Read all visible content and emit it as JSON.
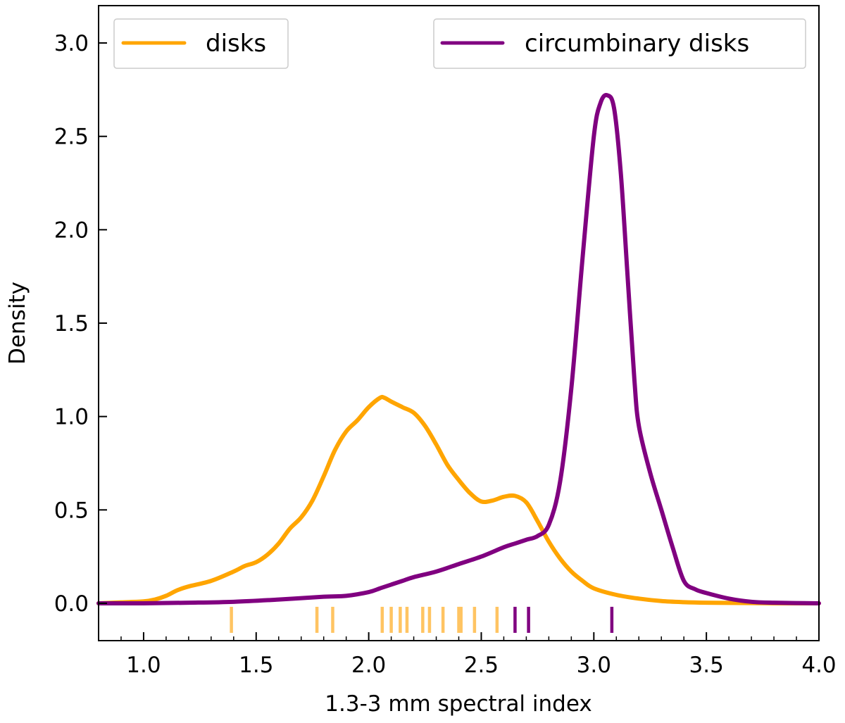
{
  "chart_data": {
    "type": "line",
    "title": "",
    "xlabel": "1.3-3 mm spectral index",
    "ylabel": "Density",
    "xlim": [
      0.8,
      4.0
    ],
    "ylim": [
      -0.2,
      3.2
    ],
    "xticks": [
      1.0,
      1.5,
      2.0,
      2.5,
      3.0,
      3.5,
      4.0
    ],
    "xtick_labels": [
      "1.0",
      "1.5",
      "2.0",
      "2.5",
      "3.0",
      "3.5",
      "4.0"
    ],
    "yticks": [
      0.0,
      0.5,
      1.0,
      1.5,
      2.0,
      2.5,
      3.0
    ],
    "ytick_labels": [
      "0.0",
      "0.5",
      "1.0",
      "1.5",
      "2.0",
      "2.5",
      "3.0"
    ],
    "grid": false,
    "series": [
      {
        "name": "disks",
        "color": "#FFA500",
        "x": [
          0.8,
          0.9,
          1.0,
          1.05,
          1.1,
          1.15,
          1.2,
          1.3,
          1.4,
          1.45,
          1.5,
          1.55,
          1.6,
          1.65,
          1.7,
          1.75,
          1.8,
          1.85,
          1.9,
          1.95,
          2.0,
          2.05,
          2.07,
          2.1,
          2.15,
          2.2,
          2.25,
          2.3,
          2.35,
          2.4,
          2.45,
          2.5,
          2.55,
          2.6,
          2.65,
          2.7,
          2.75,
          2.8,
          2.85,
          2.9,
          2.95,
          3.0,
          3.1,
          3.2,
          3.3,
          3.4,
          3.5,
          3.6,
          3.7,
          3.8,
          4.0
        ],
        "y": [
          0.0,
          0.005,
          0.01,
          0.02,
          0.04,
          0.07,
          0.09,
          0.12,
          0.17,
          0.2,
          0.22,
          0.26,
          0.32,
          0.4,
          0.46,
          0.55,
          0.68,
          0.82,
          0.92,
          0.98,
          1.05,
          1.1,
          1.1,
          1.08,
          1.05,
          1.02,
          0.95,
          0.85,
          0.74,
          0.66,
          0.59,
          0.545,
          0.55,
          0.57,
          0.575,
          0.54,
          0.44,
          0.33,
          0.24,
          0.17,
          0.12,
          0.08,
          0.045,
          0.025,
          0.012,
          0.006,
          0.003,
          0.002,
          0.001,
          0.0,
          0.0
        ]
      },
      {
        "name": "circumbinary disks",
        "color": "#800080",
        "x": [
          0.8,
          1.0,
          1.2,
          1.4,
          1.6,
          1.8,
          1.9,
          2.0,
          2.05,
          2.1,
          2.15,
          2.2,
          2.3,
          2.4,
          2.5,
          2.6,
          2.65,
          2.7,
          2.75,
          2.8,
          2.85,
          2.9,
          2.95,
          3.0,
          3.03,
          3.06,
          3.09,
          3.12,
          3.15,
          3.18,
          3.2,
          3.25,
          3.3,
          3.35,
          3.4,
          3.45,
          3.5,
          3.6,
          3.7,
          3.8,
          4.0
        ],
        "y": [
          0.0,
          0.0,
          0.003,
          0.008,
          0.02,
          0.035,
          0.04,
          0.06,
          0.08,
          0.1,
          0.12,
          0.14,
          0.17,
          0.21,
          0.25,
          0.3,
          0.32,
          0.34,
          0.36,
          0.42,
          0.65,
          1.15,
          1.85,
          2.5,
          2.68,
          2.72,
          2.65,
          2.3,
          1.75,
          1.2,
          0.95,
          0.7,
          0.5,
          0.3,
          0.12,
          0.075,
          0.055,
          0.025,
          0.008,
          0.003,
          0.0
        ]
      }
    ],
    "rugs": [
      {
        "name": "disks",
        "color": "#FFC462",
        "values": [
          1.39,
          1.77,
          1.84,
          2.06,
          2.1,
          2.14,
          2.17,
          2.24,
          2.27,
          2.33,
          2.4,
          2.41,
          2.47,
          2.57
        ]
      },
      {
        "name": "circumbinary disks",
        "color": "#800080",
        "values": [
          2.65,
          2.71,
          3.08
        ]
      }
    ],
    "legend": [
      {
        "label": "disks",
        "color": "#FFA500",
        "placement": "top-left"
      },
      {
        "label": "circumbinary disks",
        "color": "#800080",
        "placement": "top-right"
      }
    ]
  }
}
